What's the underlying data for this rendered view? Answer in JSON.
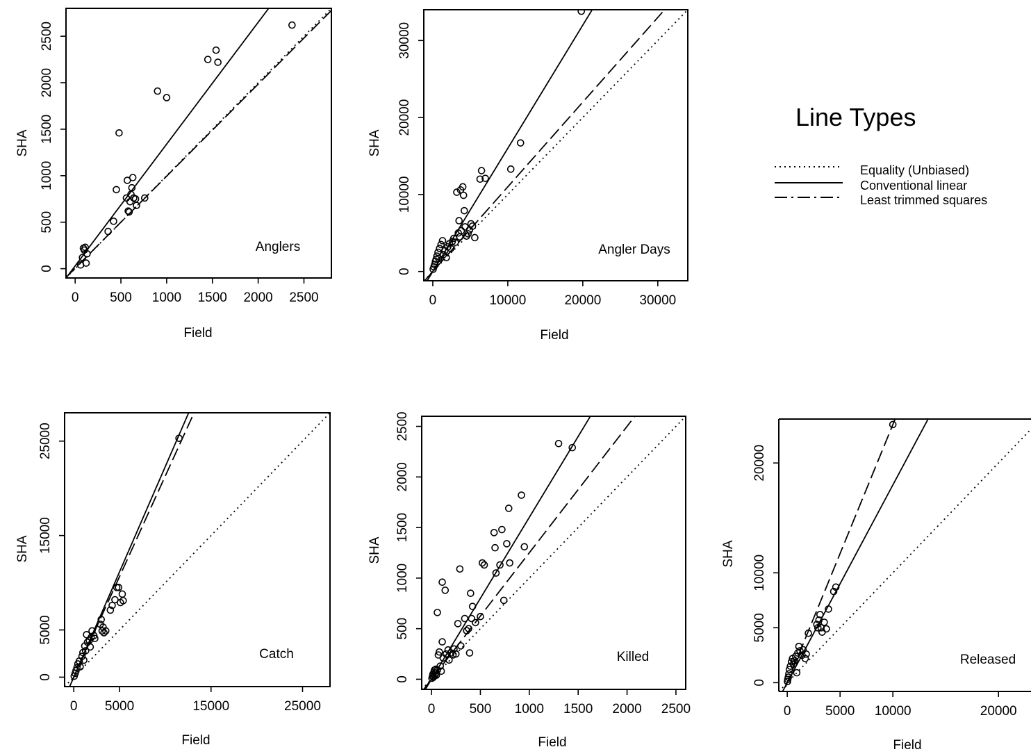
{
  "legend": {
    "title": "Line Types",
    "items": [
      {
        "label": "Equality (Unbiased)",
        "style": "dotted"
      },
      {
        "label": "Conventional linear",
        "style": "solid"
      },
      {
        "label": "Least trimmed squares",
        "style": "dashed"
      }
    ]
  },
  "chart_data": [
    {
      "type": "scatter",
      "title": "Anglers",
      "xlabel": "Field",
      "ylabel": "SHA",
      "xlim": [
        -100,
        2800
      ],
      "ylim": [
        -100,
        2800
      ],
      "xticks": [
        0,
        500,
        1000,
        1500,
        2000,
        2500
      ],
      "yticks": [
        0,
        500,
        1000,
        1500,
        2000,
        2500
      ],
      "points": [
        [
          60,
          40
        ],
        [
          80,
          120
        ],
        [
          90,
          220
        ],
        [
          100,
          200
        ],
        [
          110,
          230
        ],
        [
          120,
          60
        ],
        [
          130,
          160
        ],
        [
          360,
          400
        ],
        [
          420,
          510
        ],
        [
          450,
          850
        ],
        [
          480,
          1460
        ],
        [
          560,
          760
        ],
        [
          570,
          950
        ],
        [
          580,
          620
        ],
        [
          590,
          610
        ],
        [
          600,
          720
        ],
        [
          610,
          800
        ],
        [
          620,
          870
        ],
        [
          630,
          980
        ],
        [
          640,
          760
        ],
        [
          660,
          750
        ],
        [
          670,
          680
        ],
        [
          760,
          760
        ],
        [
          900,
          1910
        ],
        [
          1000,
          1840
        ],
        [
          1450,
          2250
        ],
        [
          1540,
          2350
        ],
        [
          1560,
          2220
        ],
        [
          2370,
          2620
        ]
      ],
      "lines": {
        "equality": [
          1,
          0
        ],
        "conventional": [
          1.31,
          30
        ],
        "lts": [
          0.99,
          5
        ]
      }
    },
    {
      "type": "scatter",
      "title": "Angler Days",
      "xlabel": "Field",
      "ylabel": "SHA",
      "xlim": [
        -1200,
        34000
      ],
      "ylim": [
        -1200,
        34000
      ],
      "xticks": [
        0,
        10000,
        20000,
        30000
      ],
      "yticks": [
        0,
        10000,
        20000,
        30000
      ],
      "points": [
        [
          50,
          300
        ],
        [
          150,
          600
        ],
        [
          250,
          900
        ],
        [
          350,
          1300
        ],
        [
          450,
          1600
        ],
        [
          550,
          2000
        ],
        [
          700,
          2500
        ],
        [
          800,
          1700
        ],
        [
          900,
          3000
        ],
        [
          1100,
          3500
        ],
        [
          1300,
          4000
        ],
        [
          1400,
          2200
        ],
        [
          1600,
          2700
        ],
        [
          1800,
          1800
        ],
        [
          2000,
          3200
        ],
        [
          2200,
          3600
        ],
        [
          2400,
          3000
        ],
        [
          2600,
          3900
        ],
        [
          2800,
          4300
        ],
        [
          3000,
          3800
        ],
        [
          3200,
          10300
        ],
        [
          3400,
          5000
        ],
        [
          3500,
          6600
        ],
        [
          3600,
          4500
        ],
        [
          3700,
          10600
        ],
        [
          3800,
          5300
        ],
        [
          4000,
          11000
        ],
        [
          4100,
          9900
        ],
        [
          4200,
          7900
        ],
        [
          4300,
          5800
        ],
        [
          4500,
          4600
        ],
        [
          4700,
          4900
        ],
        [
          4900,
          5400
        ],
        [
          5100,
          6200
        ],
        [
          5300,
          5900
        ],
        [
          5600,
          4400
        ],
        [
          6300,
          12000
        ],
        [
          6500,
          13100
        ],
        [
          7000,
          12100
        ],
        [
          10400,
          13300
        ],
        [
          11700,
          16700
        ],
        [
          19800,
          33800
        ]
      ],
      "lines": {
        "equality": [
          1,
          0
        ],
        "conventional": [
          1.6,
          0
        ],
        "lts": [
          1.1,
          0
        ]
      }
    },
    {
      "type": "scatter",
      "title": "Catch",
      "xlabel": "Field",
      "ylabel": "SHA",
      "xlim": [
        -1000,
        28000
      ],
      "ylim": [
        -1000,
        28000
      ],
      "xticks": [
        0,
        5000,
        15000,
        25000
      ],
      "yticks": [
        0,
        5000,
        15000,
        25000
      ],
      "points": [
        [
          50,
          100
        ],
        [
          150,
          400
        ],
        [
          250,
          700
        ],
        [
          350,
          1000
        ],
        [
          450,
          1400
        ],
        [
          600,
          1700
        ],
        [
          700,
          1100
        ],
        [
          900,
          2200
        ],
        [
          1000,
          2600
        ],
        [
          1100,
          1800
        ],
        [
          1200,
          3300
        ],
        [
          1300,
          2800
        ],
        [
          1400,
          4500
        ],
        [
          1500,
          3700
        ],
        [
          1700,
          3900
        ],
        [
          1800,
          3200
        ],
        [
          1900,
          4200
        ],
        [
          2000,
          4900
        ],
        [
          2200,
          4400
        ],
        [
          2300,
          4100
        ],
        [
          2900,
          5600
        ],
        [
          3000,
          6100
        ],
        [
          3100,
          4900
        ],
        [
          3200,
          5300
        ],
        [
          3300,
          4700
        ],
        [
          3500,
          4900
        ],
        [
          4000,
          7100
        ],
        [
          4200,
          7600
        ],
        [
          4500,
          8200
        ],
        [
          4700,
          9500
        ],
        [
          4900,
          9500
        ],
        [
          5100,
          7900
        ],
        [
          5300,
          8800
        ],
        [
          5400,
          8100
        ],
        [
          11500,
          25300
        ]
      ],
      "lines": {
        "equality": [
          1,
          0
        ],
        "conventional": [
          2.23,
          0
        ],
        "lts": [
          2.13,
          0
        ]
      }
    },
    {
      "type": "scatter",
      "title": "Killed",
      "xlabel": "Field",
      "ylabel": "SHA",
      "xlim": [
        -100,
        2600
      ],
      "ylim": [
        -100,
        2600
      ],
      "xticks": [
        0,
        500,
        1000,
        1500,
        2000,
        2500
      ],
      "yticks": [
        0,
        500,
        1000,
        1500,
        2000,
        2500
      ],
      "points": [
        [
          5,
          10
        ],
        [
          10,
          30
        ],
        [
          15,
          50
        ],
        [
          20,
          20
        ],
        [
          25,
          70
        ],
        [
          30,
          90
        ],
        [
          35,
          40
        ],
        [
          40,
          60
        ],
        [
          45,
          100
        ],
        [
          50,
          40
        ],
        [
          60,
          90
        ],
        [
          60,
          660
        ],
        [
          70,
          240
        ],
        [
          80,
          270
        ],
        [
          90,
          130
        ],
        [
          100,
          80
        ],
        [
          110,
          370
        ],
        [
          110,
          960
        ],
        [
          120,
          210
        ],
        [
          140,
          880
        ],
        [
          150,
          250
        ],
        [
          170,
          290
        ],
        [
          180,
          190
        ],
        [
          200,
          260
        ],
        [
          220,
          240
        ],
        [
          230,
          300
        ],
        [
          250,
          250
        ],
        [
          270,
          550
        ],
        [
          290,
          1090
        ],
        [
          300,
          330
        ],
        [
          340,
          600
        ],
        [
          360,
          480
        ],
        [
          380,
          500
        ],
        [
          390,
          260
        ],
        [
          400,
          850
        ],
        [
          410,
          600
        ],
        [
          420,
          720
        ],
        [
          450,
          560
        ],
        [
          500,
          620
        ],
        [
          520,
          1150
        ],
        [
          540,
          1130
        ],
        [
          640,
          1450
        ],
        [
          650,
          1300
        ],
        [
          660,
          1050
        ],
        [
          700,
          1130
        ],
        [
          720,
          1480
        ],
        [
          740,
          780
        ],
        [
          770,
          1340
        ],
        [
          790,
          1690
        ],
        [
          800,
          1150
        ],
        [
          920,
          1820
        ],
        [
          950,
          1310
        ],
        [
          1300,
          2330
        ],
        [
          1440,
          2290
        ]
      ],
      "lines": {
        "equality": [
          1,
          0
        ],
        "conventional": [
          1.6,
          0
        ],
        "lts": [
          1.25,
          0
        ]
      }
    },
    {
      "type": "scatter",
      "title": "Released",
      "xlabel": "Field",
      "ylabel": "SHA",
      "xlim": [
        -800,
        24000
      ],
      "ylim": [
        -800,
        24000
      ],
      "xticks": [
        0,
        5000,
        10000,
        20000
      ],
      "yticks": [
        0,
        5000,
        10000,
        20000
      ],
      "points": [
        [
          20,
          100
        ],
        [
          50,
          300
        ],
        [
          100,
          500
        ],
        [
          150,
          800
        ],
        [
          200,
          1200
        ],
        [
          300,
          1500
        ],
        [
          400,
          1900
        ],
        [
          500,
          2200
        ],
        [
          600,
          1700
        ],
        [
          700,
          2000
        ],
        [
          800,
          2400
        ],
        [
          900,
          900
        ],
        [
          1000,
          2700
        ],
        [
          1100,
          3300
        ],
        [
          1200,
          2900
        ],
        [
          1400,
          2500
        ],
        [
          1500,
          3000
        ],
        [
          1700,
          2200
        ],
        [
          1800,
          2600
        ],
        [
          2000,
          4500
        ],
        [
          2800,
          5300
        ],
        [
          2900,
          5000
        ],
        [
          3000,
          5700
        ],
        [
          3100,
          6200
        ],
        [
          3200,
          5000
        ],
        [
          3300,
          4600
        ],
        [
          3500,
          5500
        ],
        [
          3700,
          4900
        ],
        [
          3900,
          6700
        ],
        [
          4400,
          8300
        ],
        [
          4600,
          8700
        ],
        [
          10000,
          23500
        ]
      ],
      "lines": {
        "equality": [
          1,
          0
        ],
        "conventional": [
          1.8,
          0
        ],
        "lts": [
          2.35,
          0
        ]
      }
    }
  ]
}
